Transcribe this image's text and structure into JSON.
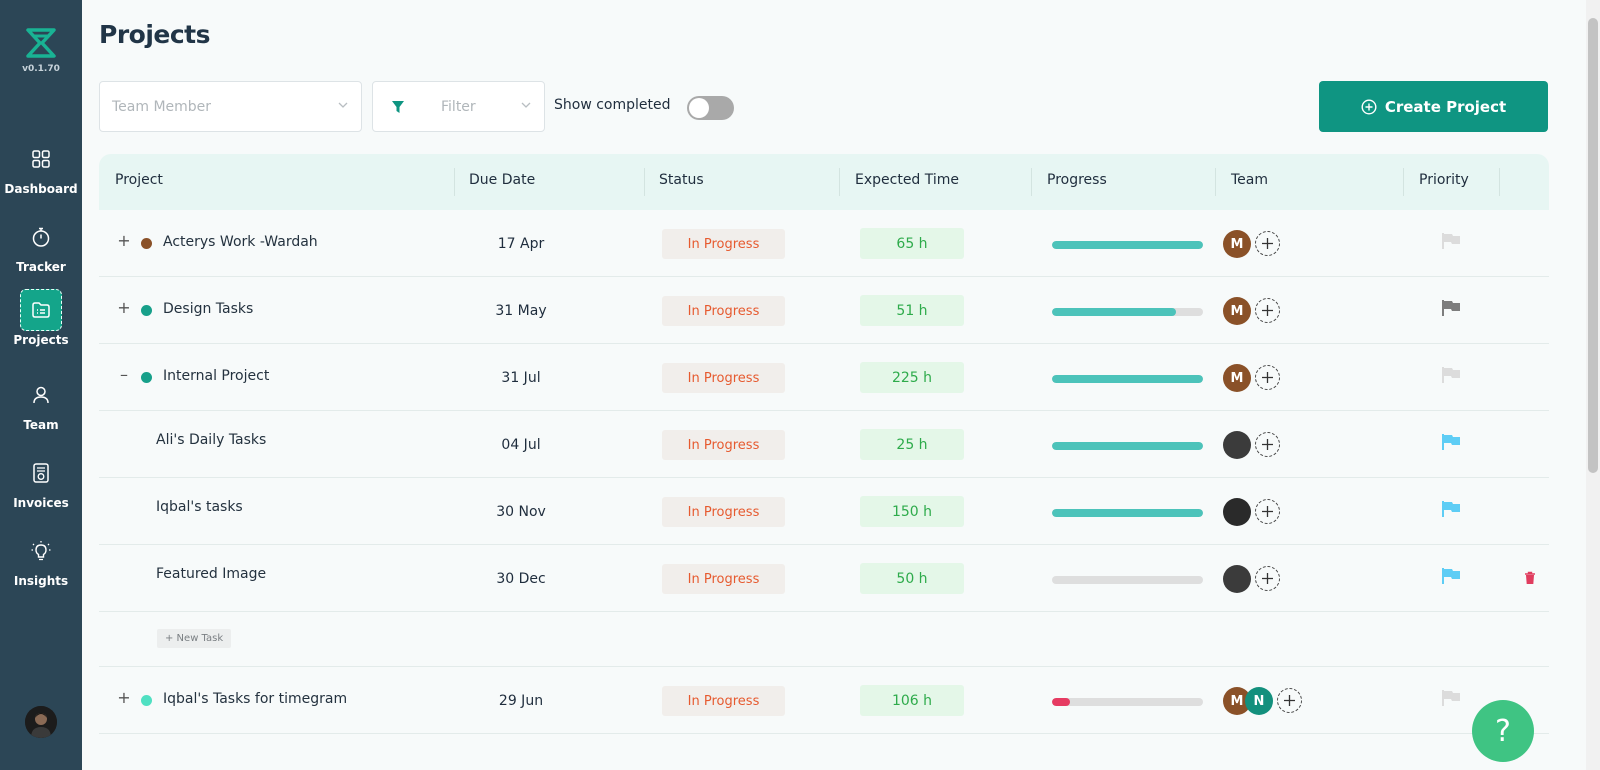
{
  "sidebar": {
    "version": "v0.1.70",
    "items": [
      {
        "label": "Dashboard",
        "icon": "dashboard-icon"
      },
      {
        "label": "Tracker",
        "icon": "stopwatch-icon"
      },
      {
        "label": "Projects",
        "icon": "projects-icon",
        "active": true
      },
      {
        "label": "Team",
        "icon": "user-icon"
      },
      {
        "label": "Invoices",
        "icon": "invoice-icon"
      },
      {
        "label": "Insights",
        "icon": "lightbulb-icon"
      }
    ]
  },
  "page": {
    "title": "Projects"
  },
  "toolbar": {
    "team_member_placeholder": "Team Member",
    "filter_label": "Filter",
    "show_completed_label": "Show completed",
    "show_completed": false,
    "create_label": "Create Project"
  },
  "table": {
    "columns": [
      "Project",
      "Due Date",
      "Status",
      "Expected Time",
      "Progress",
      "Team",
      "Priority"
    ],
    "rows": [
      {
        "expander": "+",
        "dot_color": "#8a5128",
        "name": "Acterys Work -Wardah",
        "due": "17 Apr",
        "status": "In Progress",
        "time": "65 h",
        "progress": 1.0,
        "progress_color": "#4cc3ba",
        "team": [
          {
            "initial": "M",
            "color": "#8a5128"
          }
        ],
        "priority": "none"
      },
      {
        "expander": "+",
        "dot_color": "#17a08a",
        "name": "Design Tasks",
        "due": "31 May",
        "status": "In Progress",
        "time": "51 h",
        "progress": 0.82,
        "progress_color": "#4cc3ba",
        "team": [
          {
            "initial": "M",
            "color": "#8a5128"
          }
        ],
        "priority": "normal"
      },
      {
        "expander": "–",
        "dot_color": "#17a08a",
        "name": "Internal Project",
        "due": "31 Jul",
        "status": "In Progress",
        "time": "225 h",
        "progress": 1.0,
        "progress_color": "#4cc3ba",
        "team": [
          {
            "initial": "M",
            "color": "#8a5128"
          }
        ],
        "priority": "none"
      },
      {
        "sub": true,
        "name": "Ali's Daily Tasks",
        "due": "04 Jul",
        "status": "In Progress",
        "time": "25 h",
        "progress": 1.0,
        "progress_color": "#4cc3ba",
        "team": [
          {
            "initial": "",
            "color": "#3b3b3b"
          }
        ],
        "priority": "low"
      },
      {
        "sub": true,
        "name": "Iqbal's tasks",
        "due": "30 Nov",
        "status": "In Progress",
        "time": "150 h",
        "progress": 1.0,
        "progress_color": "#4cc3ba",
        "team": [
          {
            "initial": "",
            "color": "#2a2a2a"
          }
        ],
        "priority": "low"
      },
      {
        "sub": true,
        "name": "Featured Image",
        "due": "30 Dec",
        "status": "In Progress",
        "time": "50 h",
        "progress": 0.0,
        "progress_color": "#4cc3ba",
        "team": [
          {
            "initial": "",
            "color": "#3b3b3b"
          }
        ],
        "priority": "low",
        "deletable": true
      }
    ],
    "new_task_label": "+ New Task",
    "rows_after": [
      {
        "expander": "+",
        "dot_color": "#4fe0c2",
        "name": "Iqbal's Tasks for timegram",
        "due": "29 Jun",
        "status": "In Progress",
        "time": "106 h",
        "progress": 0.12,
        "progress_color": "#e63b62",
        "team": [
          {
            "initial": "M",
            "color": "#8a5128"
          },
          {
            "initial": "N",
            "color": "#13907d"
          }
        ],
        "priority": "none"
      }
    ]
  },
  "help_label": "?"
}
